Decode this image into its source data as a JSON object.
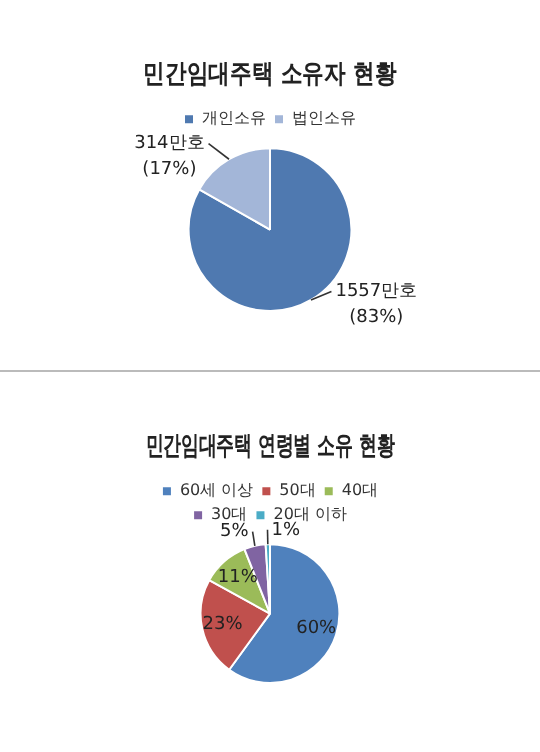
{
  "chart_data": [
    {
      "type": "pie",
      "title": "민간임대주택 소유자 현황",
      "categories": [
        "개인소유",
        "법인소유"
      ],
      "values": [
        1557,
        314
      ],
      "colors": [
        "#4f79b0",
        "#a3b6d8"
      ],
      "value_labels": [
        "1557만호 (83%)",
        "314만호 (17%)"
      ],
      "legend": "top"
    },
    {
      "type": "pie",
      "title": "민간임대주택 연령별 소유 현황",
      "categories": [
        "60세 이상",
        "50대",
        "40대",
        "30대",
        "20대 이하"
      ],
      "values": [
        60,
        23,
        11,
        5,
        1
      ],
      "colors": [
        "#4f81bd",
        "#c0504d",
        "#9bbb59",
        "#8064a2",
        "#4bacc6"
      ],
      "value_labels": [
        "60%",
        "23%",
        "11%",
        "5%",
        "1%"
      ],
      "legend": "top"
    }
  ]
}
